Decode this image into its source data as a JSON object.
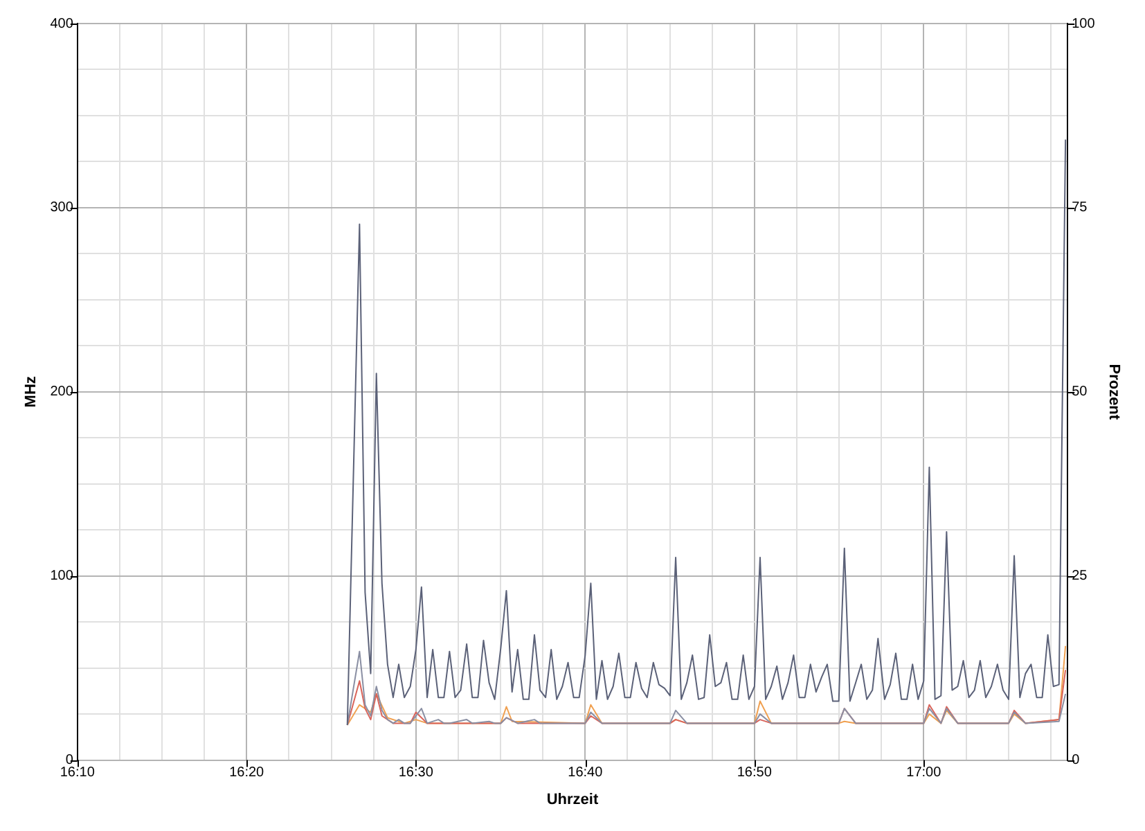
{
  "chart_data": {
    "type": "line",
    "xlabel": "Uhrzeit",
    "ylabel": "MHz",
    "y2label": "Prozent",
    "grid": true,
    "legend": false,
    "xlim": [
      16.1667,
      17.1417
    ],
    "xticks": [
      {
        "value": 16.1667,
        "label": "16:10"
      },
      {
        "value": 16.2083,
        "label": null
      },
      {
        "value": 16.25,
        "label": null
      },
      {
        "value": 16.2917,
        "label": null
      },
      {
        "value": 16.3333,
        "label": "16:20"
      },
      {
        "value": 16.375,
        "label": null
      },
      {
        "value": 16.4167,
        "label": null
      },
      {
        "value": 16.4583,
        "label": null
      },
      {
        "value": 16.5,
        "label": "16:30"
      },
      {
        "value": 16.5417,
        "label": null
      },
      {
        "value": 16.5833,
        "label": null
      },
      {
        "value": 16.625,
        "label": null
      },
      {
        "value": 16.6667,
        "label": "16:40"
      },
      {
        "value": 16.7083,
        "label": null
      },
      {
        "value": 16.75,
        "label": null
      },
      {
        "value": 16.7917,
        "label": null
      },
      {
        "value": 16.8333,
        "label": "16:50"
      },
      {
        "value": 16.875,
        "label": null
      },
      {
        "value": 16.9167,
        "label": null
      },
      {
        "value": 16.9583,
        "label": null
      },
      {
        "value": 17.0,
        "label": "17:00"
      },
      {
        "value": 17.0417,
        "label": null
      },
      {
        "value": 17.0833,
        "label": null
      },
      {
        "value": 17.125,
        "label": null
      }
    ],
    "ylim": [
      0,
      400
    ],
    "yticks": [
      0,
      {
        "value": 25,
        "label": null
      },
      {
        "value": 50,
        "label": null
      },
      {
        "value": 75,
        "label": null
      },
      100,
      {
        "value": 125,
        "label": null
      },
      {
        "value": 150,
        "label": null
      },
      {
        "value": 175,
        "label": null
      },
      200,
      {
        "value": 225,
        "label": null
      },
      {
        "value": 250,
        "label": null
      },
      {
        "value": 275,
        "label": null
      },
      300,
      {
        "value": 325,
        "label": null
      },
      {
        "value": 350,
        "label": null
      },
      {
        "value": 375,
        "label": null
      },
      400
    ],
    "y2lim": [
      0,
      100
    ],
    "y2ticks": [
      0,
      25,
      50,
      75,
      100
    ],
    "series": [
      {
        "color": "#5b6178",
        "x": [
          16.4325,
          16.4445,
          16.45,
          16.4555,
          16.4611,
          16.4666,
          16.4721,
          16.4776,
          16.4831,
          16.4886,
          16.4945,
          16.5,
          16.5055,
          16.5111,
          16.5166,
          16.5221,
          16.5276,
          16.5331,
          16.5386,
          16.5441,
          16.55,
          16.5555,
          16.5611,
          16.5666,
          16.5721,
          16.5776,
          16.5836,
          16.5891,
          16.5947,
          16.6002,
          16.6057,
          16.6112,
          16.6167,
          16.6222,
          16.6277,
          16.6332,
          16.6387,
          16.6442,
          16.6498,
          16.6553,
          16.6608,
          16.6667,
          16.6722,
          16.6777,
          16.6832,
          16.6887,
          16.6942,
          16.6998,
          16.7057,
          16.7112,
          16.7167,
          16.7222,
          16.7277,
          16.7338,
          16.7393,
          16.7448,
          16.7503,
          16.7558,
          16.7613,
          16.7668,
          16.7723,
          16.7783,
          16.7838,
          16.7893,
          16.7948,
          16.8003,
          16.8058,
          16.8113,
          16.8168,
          16.8223,
          16.8279,
          16.8334,
          16.8389,
          16.8444,
          16.8499,
          16.8554,
          16.8609,
          16.8664,
          16.8719,
          16.8774,
          16.883,
          16.8885,
          16.894,
          16.8995,
          16.905,
          16.9105,
          16.9164,
          16.9219,
          16.9274,
          16.933,
          16.9385,
          16.944,
          16.9495,
          16.955,
          16.9615,
          16.967,
          16.9725,
          16.978,
          16.9835,
          16.989,
          16.9945,
          17.0,
          17.0055,
          17.0111,
          17.017,
          17.0225,
          17.028,
          17.0335,
          17.039,
          17.0445,
          17.05,
          17.0556,
          17.0611,
          17.0666,
          17.0726,
          17.0781,
          17.0836,
          17.0891,
          17.0947,
          17.1002,
          17.1057,
          17.1112,
          17.1167,
          17.1222,
          17.1277,
          17.1332,
          17.1396
        ],
        "values": [
          19,
          291,
          91,
          47,
          210,
          96,
          52,
          34,
          52,
          34,
          40,
          60,
          94,
          34,
          60,
          34,
          34,
          59,
          34,
          38,
          63,
          34,
          34,
          65,
          42,
          33,
          61,
          92,
          37,
          60,
          33,
          33,
          68,
          38,
          34,
          60,
          33,
          40,
          53,
          34,
          34,
          57,
          96,
          33,
          54,
          33,
          40,
          58,
          34,
          34,
          53,
          39,
          34,
          53,
          41,
          39,
          35,
          110,
          33,
          42,
          57,
          33,
          34,
          68,
          40,
          42,
          53,
          33,
          33,
          57,
          33,
          40,
          110,
          33,
          40,
          51,
          33,
          42,
          57,
          34,
          34,
          52,
          37,
          45,
          52,
          32,
          32,
          115,
          32,
          42,
          52,
          33,
          38,
          66,
          33,
          41,
          58,
          33,
          33,
          52,
          33,
          43,
          159,
          33,
          35,
          124,
          38,
          40,
          54,
          34,
          38,
          54,
          34,
          40,
          52,
          38,
          33,
          111,
          34,
          47,
          52,
          34,
          34,
          68,
          40,
          41,
          337
        ]
      },
      {
        "color": "#8a8fa3",
        "x": [
          16.4325,
          16.4445,
          16.45,
          16.4555,
          16.4611,
          16.4666,
          16.4721,
          16.4776,
          16.4831,
          16.4886,
          16.4945,
          16.5,
          16.5055,
          16.5111,
          16.5221,
          16.5276,
          16.5331,
          16.55,
          16.5555,
          16.5721,
          16.5776,
          16.5836,
          16.5891,
          16.6002,
          16.6167,
          16.6222,
          16.6667,
          16.6722,
          16.6832,
          16.7503,
          16.7558,
          16.7668,
          16.8334,
          16.8389,
          16.8499,
          16.9164,
          16.9219,
          16.933,
          17.0,
          17.0055,
          17.017,
          17.0225,
          17.0335,
          17.0836,
          17.0891,
          17.1002,
          17.1332,
          17.1396
        ],
        "values": [
          19,
          59,
          30,
          24,
          40,
          27,
          22,
          20,
          22,
          20,
          20,
          24,
          28,
          20,
          22,
          20,
          20,
          22,
          20,
          21,
          20,
          20,
          23,
          20,
          22,
          20,
          20,
          26,
          20,
          20,
          27,
          20,
          20,
          25,
          20,
          20,
          28,
          20,
          20,
          28,
          20,
          28,
          20,
          20,
          26,
          20,
          21,
          36
        ]
      },
      {
        "color": "#d9645a",
        "x": [
          16.4325,
          16.4445,
          16.45,
          16.4555,
          16.4611,
          16.4666,
          16.4776,
          16.4945,
          16.5,
          16.5111,
          16.5836,
          16.5891,
          16.6002,
          16.6667,
          16.6722,
          16.6832,
          16.7503,
          16.7558,
          16.7668,
          16.8334,
          16.8389,
          16.8499,
          16.9164,
          16.9219,
          16.933,
          17.0,
          17.0055,
          17.017,
          17.0225,
          17.0335,
          17.0836,
          17.0891,
          17.1002,
          17.1332,
          17.1396
        ],
        "values": [
          19,
          43,
          28,
          22,
          36,
          24,
          20,
          20,
          26,
          20,
          20,
          23,
          20,
          20,
          24,
          20,
          20,
          22,
          20,
          20,
          22,
          20,
          20,
          28,
          20,
          20,
          30,
          20,
          29,
          20,
          20,
          27,
          20,
          22,
          49
        ]
      },
      {
        "color": "#f0a050",
        "x": [
          16.4325,
          16.4445,
          16.4555,
          16.4611,
          16.4721,
          16.4886,
          16.5,
          16.5111,
          16.5836,
          16.5891,
          16.5947,
          16.6667,
          16.6722,
          16.6832,
          16.7503,
          16.7558,
          16.7668,
          16.8334,
          16.8389,
          16.8499,
          16.9164,
          16.9219,
          16.933,
          17.0,
          17.0055,
          17.017,
          17.0225,
          17.0335,
          17.0836,
          17.0891,
          17.1002,
          17.1332,
          17.1396
        ],
        "values": [
          19,
          30,
          26,
          36,
          23,
          20,
          22,
          20,
          20,
          29,
          21,
          20,
          30,
          20,
          20,
          22,
          20,
          20,
          32,
          20,
          20,
          21,
          20,
          20,
          25,
          20,
          27,
          20,
          20,
          25,
          20,
          22,
          62
        ]
      }
    ]
  }
}
